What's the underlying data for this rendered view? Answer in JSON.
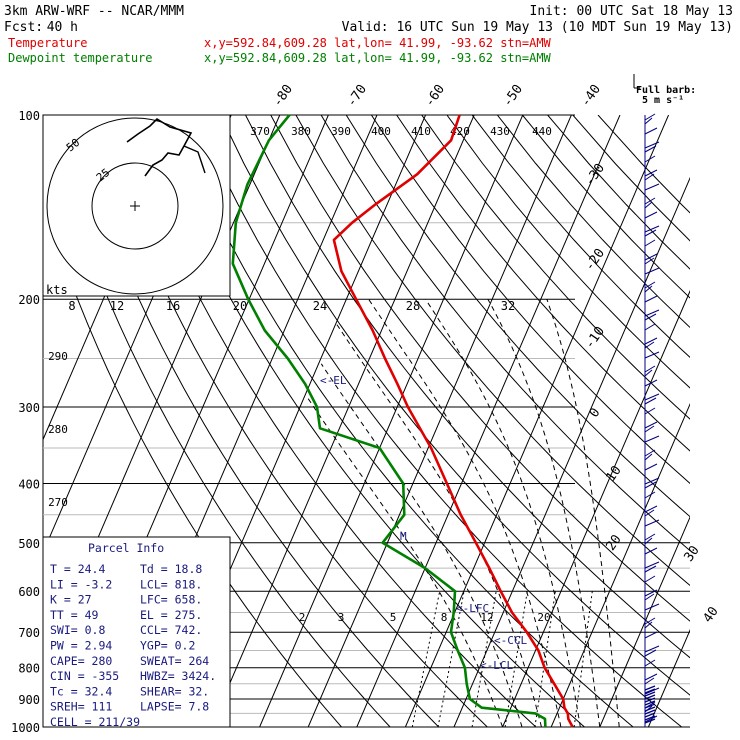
{
  "header": {
    "model": "3km ARW-WRF -- NCAR/MMM",
    "init": "Init: 00 UTC Sat 18 May 13",
    "fcst_label": "Fcst:",
    "fcst_value": "40 h",
    "valid": "Valid: 16 UTC Sun 19 May 13 (10 MDT Sun 19 May 13)"
  },
  "legend": [
    {
      "name": "Temperature",
      "info": "x,y=592.84,609.28   lat,lon= 41.99, -93.62  stn=AMW",
      "color": "#e00000"
    },
    {
      "name": "Dewpoint temperature",
      "info": "x,y=592.84,609.28   lat,lon= 41.99, -93.62  stn=AMW",
      "color": "#008000"
    }
  ],
  "barb_key": {
    "line1": "Full barb:",
    "line2": "5 m s⁻¹"
  },
  "hodograph": {
    "units": "kts",
    "rings": [
      "25",
      "50"
    ]
  },
  "chart_data": {
    "type": "line",
    "pressure_ticks": [
      "100",
      "200",
      "300",
      "400",
      "500",
      "600",
      "700",
      "800",
      "900",
      "1000"
    ],
    "skew_isotherm_labels": [
      "-80",
      "-70",
      "-60",
      "-50",
      "-40",
      "-30",
      "-20",
      "-10",
      "0",
      "10",
      "20",
      "30",
      "40"
    ],
    "theta_e_labels": [
      "370",
      "380",
      "390",
      "400",
      "410",
      "420",
      "430",
      "440"
    ],
    "theta_labels": [
      "290",
      "280",
      "270"
    ],
    "kts_labels": [
      "8",
      "12",
      "16",
      "20",
      "24",
      "28",
      "32"
    ],
    "mixing_ratio_labels": [
      "2",
      "3",
      "5",
      "8",
      "12",
      "20"
    ],
    "series": [
      {
        "name": "Temperature",
        "color": "#e00000",
        "p": [
          1000,
          970,
          950,
          930,
          900,
          850,
          800,
          750,
          700,
          650,
          600,
          550,
          500,
          450,
          400,
          350,
          300,
          275,
          250,
          225,
          200,
          180,
          160,
          150,
          140,
          125,
          110,
          100
        ],
        "t": [
          24.4,
          22.8,
          22.2,
          21.0,
          20.0,
          16.8,
          13.4,
          10.6,
          6.6,
          1.8,
          -2.4,
          -6.8,
          -11.8,
          -17.4,
          -23.0,
          -29.4,
          -37.8,
          -42.0,
          -46.8,
          -51.8,
          -58.0,
          -63.5,
          -67.8,
          -65.6,
          -62.4,
          -56.5,
          -52.5,
          -53.0
        ]
      },
      {
        "name": "Dewpoint temperature",
        "color": "#008000",
        "p": [
          1000,
          970,
          950,
          930,
          900,
          850,
          800,
          750,
          700,
          650,
          600,
          550,
          500,
          450,
          400,
          350,
          325,
          300,
          275,
          250,
          225,
          200,
          175,
          150,
          130,
          110,
          100
        ],
        "t": [
          18.8,
          18.0,
          15.5,
          4.0,
          0.8,
          -1.2,
          -3.0,
          -6.0,
          -9.0,
          -10.2,
          -11.8,
          -20.0,
          -31.0,
          -29.0,
          -32.0,
          -40.0,
          -54.0,
          -56.5,
          -61.0,
          -66.8,
          -74.0,
          -80.2,
          -86.5,
          -89.5,
          -90.5,
          -90.0,
          -88.0
        ]
      }
    ],
    "annotations": [
      "<-EL",
      "<-LFC",
      "<-CCL",
      "<-LCL",
      "M"
    ]
  },
  "parcel": {
    "title": "Parcel Info",
    "rows": [
      [
        "T  =    24.4",
        "Td =   18.8"
      ],
      [
        "LI =    -3.2",
        "LCL=   818."
      ],
      [
        "K  =      27",
        "LFC=   658."
      ],
      [
        "TT =      49",
        "EL =   275."
      ],
      [
        "SWI=     0.8",
        "CCL=   742."
      ],
      [
        "PW =    2.94",
        "YGP=    0.2"
      ],
      [
        "CAPE=    280",
        "SWEAT=  264"
      ],
      [
        "CIN =   -355",
        "HWBZ= 3424."
      ],
      [
        "Tc =    32.4",
        "SHEAR=  32."
      ],
      [
        "SREH=    111",
        "LAPSE=  7.8"
      ],
      [
        "CELL = 211/39",
        ""
      ]
    ]
  }
}
